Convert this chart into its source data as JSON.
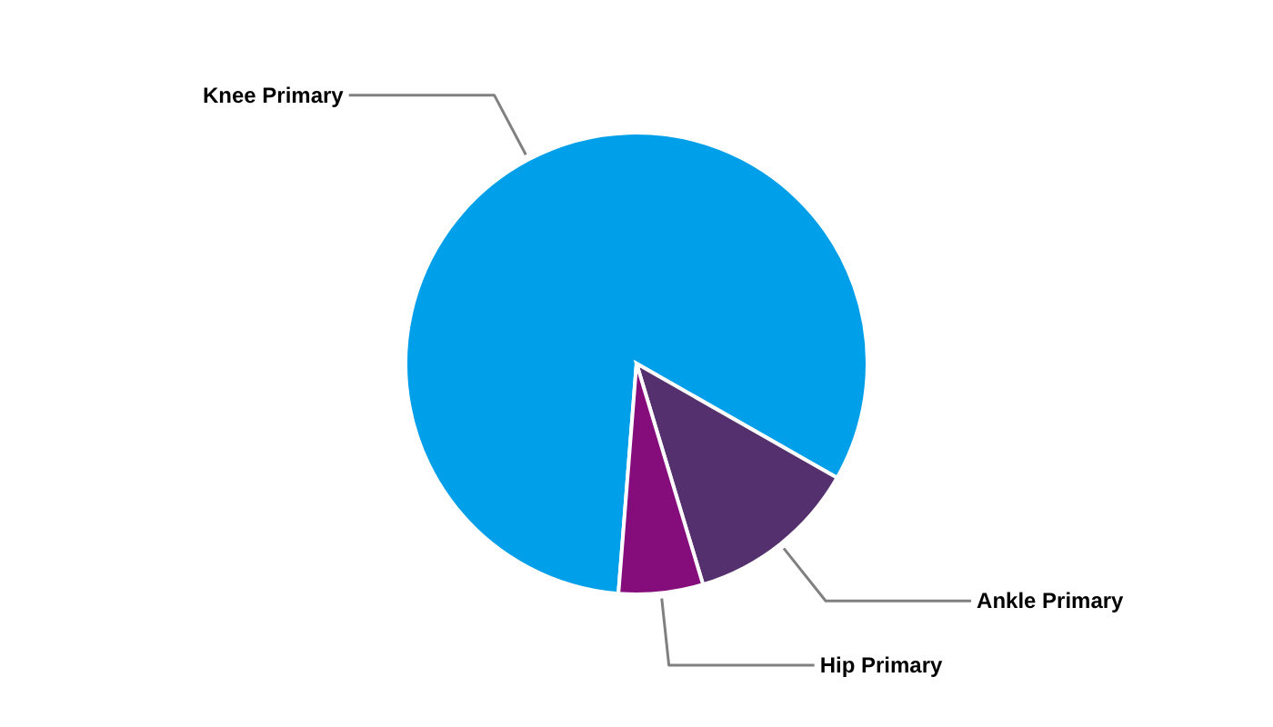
{
  "chart_data": {
    "type": "pie",
    "categories": [
      "Knee Primary",
      "Ankle Primary",
      "Hip Primary"
    ],
    "values": [
      82,
      12.1,
      5.9
    ],
    "colors": [
      "#009fe9",
      "#55306e",
      "#850d7b"
    ]
  }
}
